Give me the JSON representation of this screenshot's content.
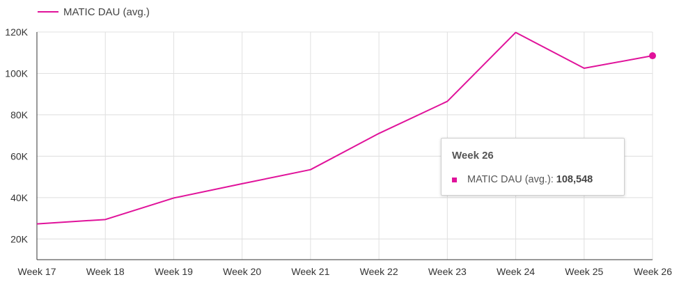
{
  "chart_data": {
    "type": "line",
    "categories": [
      "Week 17",
      "Week 18",
      "Week 19",
      "Week 20",
      "Week 21",
      "Week 22",
      "Week 23",
      "Week 24",
      "Week 25",
      "Week 26"
    ],
    "series": [
      {
        "name": "MATIC DAU (avg.)",
        "color": "#e0129a",
        "values": [
          27300,
          29400,
          39800,
          46700,
          53500,
          71000,
          86500,
          119800,
          102500,
          108548
        ]
      }
    ],
    "ylim": [
      10000,
      120000
    ],
    "yticks": [
      20000,
      40000,
      60000,
      80000,
      100000,
      120000
    ],
    "ytick_labels": [
      "20K",
      "40K",
      "60K",
      "80K",
      "100K",
      "120K"
    ],
    "grid": true,
    "legend": "top-left",
    "tooltip": {
      "title": "Week 26",
      "label": "MATIC DAU (avg.):",
      "value": "108,548"
    }
  }
}
